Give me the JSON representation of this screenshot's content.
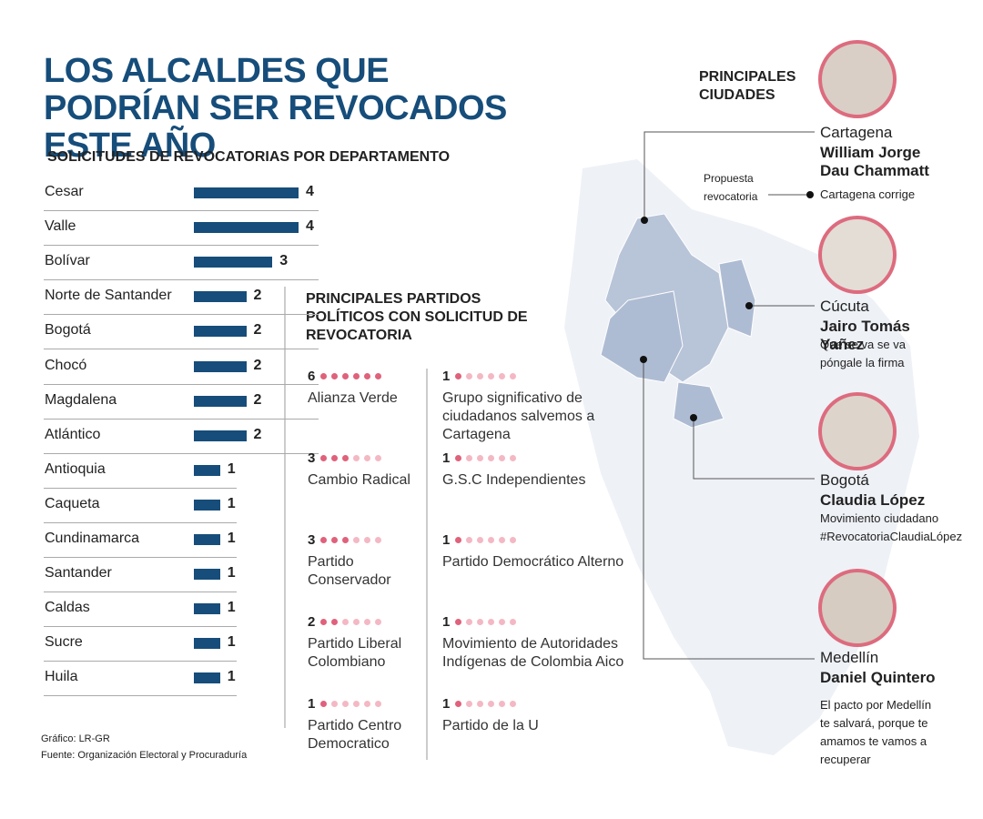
{
  "title": "LOS ALCALDES QUE PODRÍAN SER REVOCADOS ESTE AÑO",
  "chart_data": {
    "type": "bar",
    "orientation": "horizontal",
    "title": "SOLICITUDES DE REVOCATORIAS POR DEPARTAMENTO",
    "categories": [
      "Cesar",
      "Valle",
      "Bolívar",
      "Norte de Santander",
      "Bogotá",
      "Chocó",
      "Magdalena",
      "Atlántico",
      "Antioquia",
      "Caqueta",
      "Cundinamarca",
      "Santander",
      "Caldas",
      "Sucre",
      "Huila"
    ],
    "values": [
      4,
      4,
      3,
      2,
      2,
      2,
      2,
      2,
      1,
      1,
      1,
      1,
      1,
      1,
      1
    ],
    "color": "#164d7a",
    "xlim": [
      0,
      4
    ]
  },
  "parties": {
    "title": "PRINCIPALES PARTIDOS POLÍTICOS CON SOLICITUD DE REVOCATORIA",
    "filled_color": "#e0617b",
    "empty_color": "#f4b8c4",
    "items": [
      {
        "count": 6,
        "name": "Alianza Verde"
      },
      {
        "count": 3,
        "name": "Cambio Radical"
      },
      {
        "count": 3,
        "name": "Partido Conservador"
      },
      {
        "count": 2,
        "name": "Partido Liberal Colombiano"
      },
      {
        "count": 1,
        "name": "Partido Centro Democratico"
      },
      {
        "count": 1,
        "name": "Grupo significativo de ciudadanos salvemos a Cartagena"
      },
      {
        "count": 1,
        "name": "G.S.C Independientes"
      },
      {
        "count": 1,
        "name": "Partido Democrático Alterno"
      },
      {
        "count": 1,
        "name": "Movimiento de Autoridades Indígenas de Colombia Aico"
      },
      {
        "count": 1,
        "name": "Partido de la U"
      }
    ]
  },
  "cities": {
    "title": "PRINCIPALES CIUDADES",
    "proposal_label": "Propuesta revocatoria",
    "items": [
      {
        "city": "Cartagena",
        "mayor": "William Jorge Dau Chammatt",
        "slogan": "Cartagena corrige"
      },
      {
        "city": "Cúcuta",
        "mayor": "Jairo Tomás Yañez",
        "slogan": "Que se va se va póngale la firma"
      },
      {
        "city": "Bogotá",
        "mayor": "Claudia López",
        "slogan": "Movimiento ciudadano #RevocatoriaClaudiaLópez"
      },
      {
        "city": "Medellín",
        "mayor": "Daniel Quintero",
        "slogan": "El pacto por Medellín te salvará, porque te amamos te vamos a recuperar"
      }
    ]
  },
  "footer": {
    "graphic": "Gráfico: LR-GR",
    "source": "Fuente: Organización Electoral y Procuraduría"
  }
}
